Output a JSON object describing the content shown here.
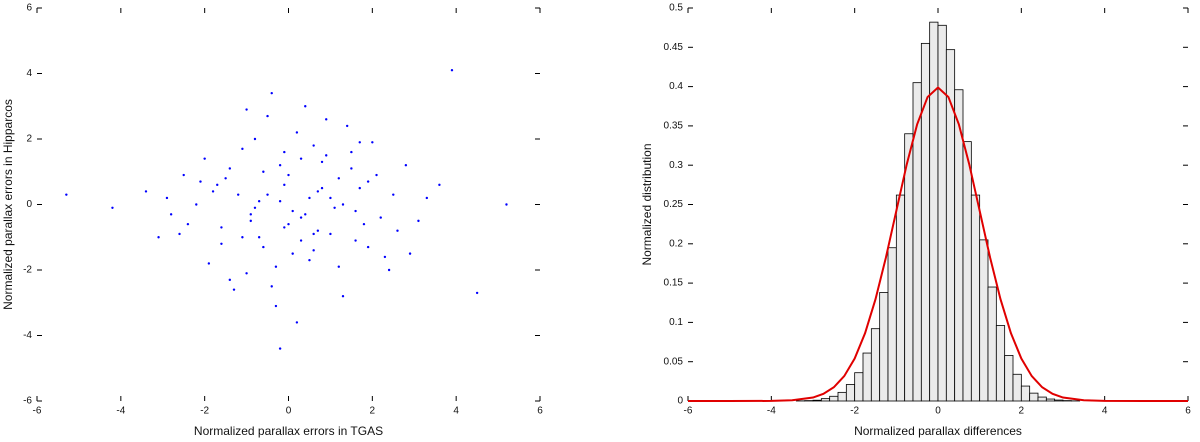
{
  "chart_data": [
    {
      "type": "scatter",
      "xlabel": "Normalized parallax errors in TGAS",
      "ylabel": "Normalized parallax errors in Hipparcos",
      "color": "#0000ff",
      "xlim": [
        -6,
        6
      ],
      "ylim": [
        -6,
        6
      ],
      "xticks": [
        -6,
        -4,
        -2,
        0,
        2,
        4,
        6
      ],
      "yticks": [
        -6,
        -4,
        -2,
        0,
        2,
        4,
        6
      ],
      "x": [
        -0.5,
        0.3,
        1.2,
        -1.1,
        0.8,
        -0.2,
        1.6,
        -1.8,
        0.1,
        2.1,
        -2.4,
        0.6,
        -0.7,
        1.0,
        -1.4,
        0.4,
        -0.1,
        1.9,
        -2.9,
        0.9,
        -0.3,
        1.3,
        -0.9,
        0.2,
        2.5,
        -1.6,
        0.7,
        -0.6,
        1.5,
        -2.1,
        3.1,
        -0.4,
        0.0,
        1.1,
        -1.2,
        2.3,
        -3.4,
        0.5,
        -0.8,
        1.7,
        -1.9,
        0.3,
        2.8,
        -0.1,
        -2.6,
        1.4,
        0.8,
        -1.0,
        3.6,
        -0.2,
        0.6,
        -1.5,
        1.8,
        -0.5,
        2.0,
        -2.2,
        0.1,
        1.2,
        -4.2,
        0.4,
        -0.9,
        2.6,
        -1.3,
        0.7,
        -0.3,
        1.5,
        -2.0,
        3.3,
        -0.6,
        0.9,
        -1.7,
        0.2,
        2.2,
        -1.1,
        0.5,
        -3.1,
        1.6,
        -0.4,
        4.5,
        -0.8,
        1.0,
        -2.5,
        0.3,
        1.9,
        -1.4,
        -0.2,
        2.9,
        -0.7,
        1.3,
        -5.3,
        0.0,
        1.7,
        -1.0,
        3.9,
        -2.8,
        0.6,
        -0.1,
        2.4,
        -1.6,
        5.2
      ],
      "values": [
        0.3,
        -0.4,
        0.8,
        -1.0,
        0.5,
        1.2,
        -0.2,
        0.4,
        -1.5,
        0.9,
        -0.6,
        1.8,
        0.1,
        -0.9,
        1.1,
        -0.3,
        0.6,
        -1.3,
        0.2,
        1.5,
        -1.9,
        0.0,
        -0.5,
        2.2,
        0.3,
        -1.2,
        -0.8,
        1.0,
        1.6,
        0.7,
        -0.5,
        -2.5,
        0.9,
        -0.1,
        0.3,
        -1.6,
        0.4,
        0.2,
        2.0,
        0.5,
        -1.8,
        -1.1,
        1.2,
        -0.7,
        -0.9,
        2.4,
        1.3,
        -2.1,
        0.6,
        0.1,
        -1.4,
        0.8,
        -0.6,
        2.7,
        1.9,
        0.0,
        -0.2,
        -1.9,
        -0.1,
        3.0,
        -0.3,
        -0.8,
        -2.6,
        0.4,
        -3.1,
        1.1,
        1.4,
        0.2,
        -1.3,
        2.6,
        0.6,
        -3.6,
        -0.4,
        1.7,
        -1.7,
        -1.0,
        -1.1,
        3.4,
        -2.7,
        -0.1,
        0.2,
        0.9,
        1.4,
        0.7,
        -2.3,
        -4.4,
        -1.5,
        -1.0,
        -2.8,
        0.3,
        -0.6,
        1.9,
        2.9,
        4.1,
        -0.3,
        -0.9,
        1.6,
        -2.0,
        -0.7,
        0.0
      ]
    },
    {
      "type": "histogram",
      "xlabel": "Normalized parallax differences",
      "ylabel": "Normalized distribution",
      "color": "#ebebeb",
      "xlim": [
        -6,
        6
      ],
      "ylim": [
        0,
        0.5
      ],
      "xticks": [
        -6,
        -4,
        -2,
        0,
        2,
        4,
        6
      ],
      "yticks": [
        0,
        0.05,
        0.1,
        0.15,
        0.2,
        0.25,
        0.3,
        0.35,
        0.4,
        0.45,
        0.5
      ],
      "bins": [
        -3.4,
        -3.2,
        -3.0,
        -2.8,
        -2.6,
        -2.4,
        -2.2,
        -2.0,
        -1.8,
        -1.6,
        -1.4,
        -1.2,
        -1.0,
        -0.8,
        -0.6,
        -0.4,
        -0.2,
        0.0,
        0.2,
        0.4,
        0.6,
        0.8,
        1.0,
        1.2,
        1.4,
        1.6,
        1.8,
        2.0,
        2.2,
        2.4,
        2.6,
        2.8,
        3.0,
        3.2,
        3.4
      ],
      "counts": [
        0.0002,
        0.0005,
        0.001,
        0.003,
        0.006,
        0.011,
        0.021,
        0.036,
        0.061,
        0.092,
        0.138,
        0.195,
        0.262,
        0.34,
        0.405,
        0.455,
        0.482,
        0.478,
        0.447,
        0.396,
        0.33,
        0.262,
        0.205,
        0.145,
        0.096,
        0.058,
        0.034,
        0.019,
        0.01,
        0.005,
        0.0025,
        0.0012,
        0.0005,
        0.0002
      ],
      "line": {
        "color": "#e00000",
        "x": [
          -6,
          -5,
          -4,
          -3.5,
          -3,
          -2.75,
          -2.5,
          -2.25,
          -2,
          -1.75,
          -1.5,
          -1.25,
          -1,
          -0.75,
          -0.5,
          -0.25,
          0,
          0.25,
          0.5,
          0.75,
          1,
          1.25,
          1.5,
          1.75,
          2,
          2.25,
          2.5,
          2.75,
          3,
          3.5,
          4,
          5,
          6
        ],
        "values": [
          0,
          0,
          0.0001,
          0.0009,
          0.0044,
          0.0091,
          0.0175,
          0.0317,
          0.054,
          0.0863,
          0.1295,
          0.1826,
          0.242,
          0.3011,
          0.3521,
          0.3867,
          0.3989,
          0.3867,
          0.3521,
          0.3011,
          0.242,
          0.1826,
          0.1295,
          0.0863,
          0.054,
          0.0317,
          0.0175,
          0.0091,
          0.0044,
          0.0009,
          0.0001,
          0,
          0
        ]
      }
    }
  ]
}
